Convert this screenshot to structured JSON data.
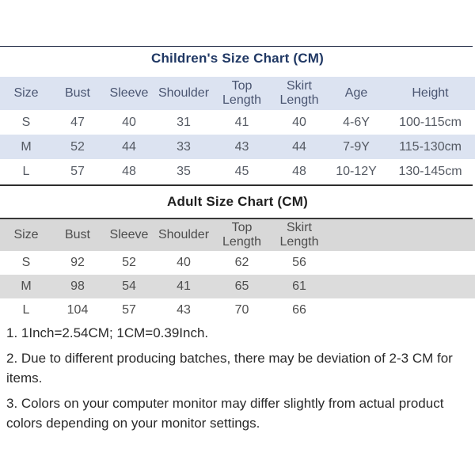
{
  "children_chart": {
    "title": "Children's Size Chart (CM)",
    "columns": [
      "Size",
      "Bust",
      "Sleeve",
      "Shoulder",
      "Top Length",
      "Skirt Length",
      "Age",
      "Height"
    ],
    "rows": [
      [
        "S",
        "47",
        "40",
        "31",
        "41",
        "40",
        "4-6Y",
        "100-115cm"
      ],
      [
        "M",
        "52",
        "44",
        "33",
        "43",
        "44",
        "7-9Y",
        "115-130cm"
      ],
      [
        "L",
        "57",
        "48",
        "35",
        "45",
        "48",
        "10-12Y",
        "130-145cm"
      ]
    ],
    "header_bg": "#dce3f1",
    "alt_row_bg": "#dce3f1",
    "title_color": "#203864"
  },
  "adult_chart": {
    "title": "Adult Size Chart (CM)",
    "columns": [
      "Size",
      "Bust",
      "Sleeve",
      "Shoulder",
      "Top Length",
      "Skirt Length"
    ],
    "rows": [
      [
        "S",
        "92",
        "52",
        "40",
        "62",
        "56"
      ],
      [
        "M",
        "98",
        "54",
        "41",
        "65",
        "61"
      ],
      [
        "L",
        "104",
        "57",
        "43",
        "70",
        "66"
      ]
    ],
    "header_bg": "#d8d8d8",
    "alt_row_bg": "#dcdcdc",
    "title_color": "#1f1f1f"
  },
  "notes": [
    "1. 1Inch=2.54CM; 1CM=0.39Inch.",
    "2. Due to different producing batches, there may be deviation of 2-3 CM for\nitems.",
    "3. Colors on your computer monitor may differ slightly from actual product\ncolors depending on your monitor settings."
  ]
}
